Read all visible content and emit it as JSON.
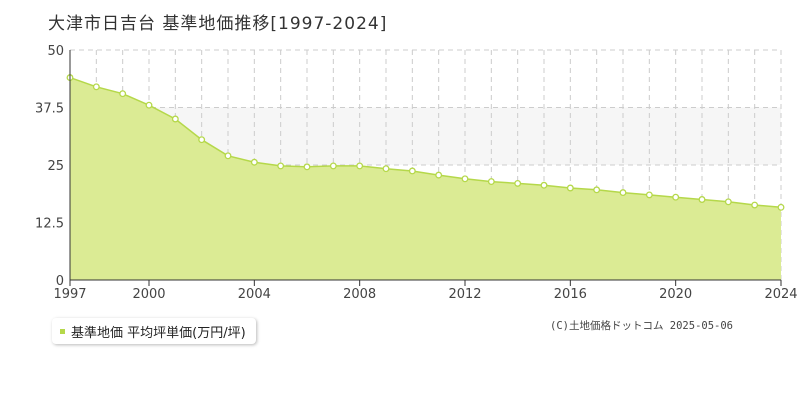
{
  "title": "大津市日吉台  基準地価推移[1997-2024]",
  "legend": {
    "label": "基準地価 平均坪単価(万円/坪)"
  },
  "copyright": "(C)土地価格ドットコム 2025-05-06",
  "colors": {
    "fill": "#dbeb94",
    "line": "#b5d84a",
    "band": "#f6f6f6",
    "grid": "#cccccc"
  },
  "chart_data": {
    "type": "area",
    "title": "大津市日吉台  基準地価推移[1997-2024]",
    "xlabel": "",
    "ylabel": "",
    "xlim": [
      1997,
      2024
    ],
    "ylim": [
      0,
      50
    ],
    "grid": true,
    "legend_position": "bottom-left",
    "x_ticks": [
      "1997",
      "2000",
      "2004",
      "2008",
      "2012",
      "2016",
      "2020",
      "2024"
    ],
    "y_ticks": [
      "0",
      "12.5",
      "25",
      "37.5",
      "50"
    ],
    "series": [
      {
        "name": "基準地価 平均坪単価(万円/坪)",
        "x": [
          1997,
          1998,
          1999,
          2000,
          2001,
          2002,
          2003,
          2004,
          2005,
          2006,
          2007,
          2008,
          2009,
          2010,
          2011,
          2012,
          2013,
          2014,
          2015,
          2016,
          2017,
          2018,
          2019,
          2020,
          2021,
          2022,
          2023,
          2024
        ],
        "y": [
          44.0,
          42.0,
          40.5,
          38.0,
          35.0,
          30.5,
          27.0,
          25.6,
          24.8,
          24.6,
          24.8,
          24.8,
          24.2,
          23.7,
          22.8,
          22.0,
          21.4,
          21.0,
          20.6,
          20.0,
          19.6,
          19.0,
          18.5,
          18.0,
          17.5,
          17.0,
          16.3,
          15.8
        ]
      }
    ]
  }
}
